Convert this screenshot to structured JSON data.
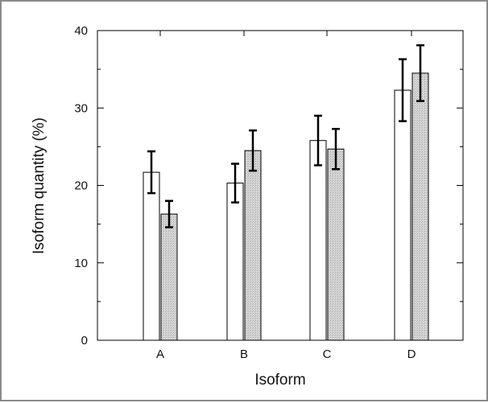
{
  "chart_data": {
    "type": "bar",
    "xlabel": "Isoform",
    "ylabel": "Isoform quantity (%)",
    "categories": [
      "A",
      "B",
      "C",
      "D"
    ],
    "ylim": [
      0,
      40
    ],
    "yticks": [
      0,
      10,
      20,
      30,
      40
    ],
    "grid": false,
    "series": [
      {
        "fill": "#ffffff",
        "values": [
          21.7,
          20.3,
          25.8,
          32.3
        ],
        "error": [
          2.7,
          2.5,
          3.2,
          4.0
        ]
      },
      {
        "fill": "#cfcfcf",
        "values": [
          16.3,
          24.5,
          24.7,
          34.5
        ],
        "error": [
          1.7,
          2.6,
          2.6,
          3.6
        ]
      }
    ]
  }
}
